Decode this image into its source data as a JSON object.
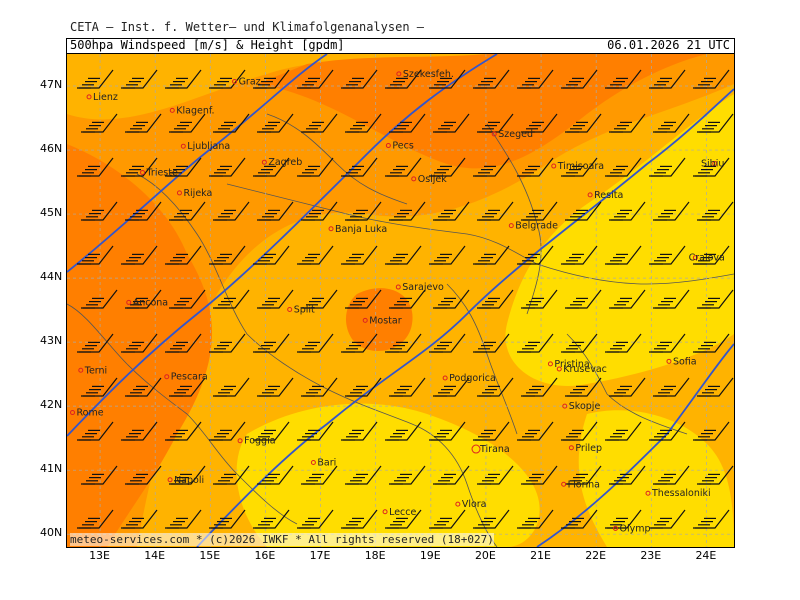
{
  "header": {
    "institute": "CETA — Inst. f. Wetter— und Klimafolgenanalysen —"
  },
  "title_bar": {
    "product": "500hpa Windspeed [m/s] & Height [gpdm]",
    "valid_time": "06.01.2026 21 UTC"
  },
  "credit": "meteo-services.com * (c)2026 IWKF * All rights reserved (18+027)",
  "axes": {
    "lat_labels": [
      "47N",
      "46N",
      "45N",
      "44N",
      "43N",
      "42N",
      "41N",
      "40N"
    ],
    "lon_labels": [
      "13E",
      "14E",
      "15E",
      "16E",
      "17E",
      "18E",
      "19E",
      "20E",
      "21E",
      "22E",
      "23E",
      "24E"
    ],
    "lon_range": [
      12.4,
      24.5
    ],
    "lat_range": [
      39.8,
      47.5
    ]
  },
  "colors": {
    "light_orange": "#ffb300",
    "orange": "#ff9900",
    "dark_orange": "#ff7f00",
    "yellow": "#ffdd00",
    "contour": "#3355cc",
    "city": "#dd2222",
    "grid": "#aaaaaa"
  },
  "cities": [
    {
      "name": "Lienz",
      "lon": 12.8,
      "lat": 46.83
    },
    {
      "name": "Graz",
      "lon": 15.44,
      "lat": 47.07
    },
    {
      "name": "Szekesfeh.",
      "lon": 18.42,
      "lat": 47.19
    },
    {
      "name": "Klagenf.",
      "lon": 14.31,
      "lat": 46.62
    },
    {
      "name": "Ljubljana",
      "lon": 14.51,
      "lat": 46.06
    },
    {
      "name": "Pecs",
      "lon": 18.23,
      "lat": 46.07
    },
    {
      "name": "Szeged",
      "lon": 20.15,
      "lat": 46.25
    },
    {
      "name": "Trieste",
      "lon": 13.77,
      "lat": 45.65
    },
    {
      "name": "Zagreb",
      "lon": 15.98,
      "lat": 45.81
    },
    {
      "name": "Timisoara",
      "lon": 21.23,
      "lat": 45.75
    },
    {
      "name": "Sibiu",
      "lon": 24.15,
      "lat": 45.79
    },
    {
      "name": "Rijeka",
      "lon": 14.44,
      "lat": 45.33
    },
    {
      "name": "Osijek",
      "lon": 18.69,
      "lat": 45.55
    },
    {
      "name": "Resita",
      "lon": 21.89,
      "lat": 45.3
    },
    {
      "name": "Banja Luka",
      "lon": 17.19,
      "lat": 44.77
    },
    {
      "name": "Belgrade",
      "lon": 20.46,
      "lat": 44.82
    },
    {
      "name": "Craiova",
      "lon": 23.8,
      "lat": 44.32
    },
    {
      "name": "Ancona",
      "lon": 13.52,
      "lat": 43.62
    },
    {
      "name": "Sarajevo",
      "lon": 18.41,
      "lat": 43.86
    },
    {
      "name": "Split",
      "lon": 16.44,
      "lat": 43.51
    },
    {
      "name": "Mostar",
      "lon": 17.81,
      "lat": 43.34
    },
    {
      "name": "Terni",
      "lon": 12.65,
      "lat": 42.56
    },
    {
      "name": "Pristina",
      "lon": 21.17,
      "lat": 42.66
    },
    {
      "name": "Sofia",
      "lon": 23.32,
      "lat": 42.7
    },
    {
      "name": "Krusevac",
      "lon": 21.33,
      "lat": 42.58
    },
    {
      "name": "Pescara",
      "lon": 14.21,
      "lat": 42.46
    },
    {
      "name": "Podgorica",
      "lon": 19.26,
      "lat": 42.44
    },
    {
      "name": "Rome",
      "lon": 12.5,
      "lat": 41.9
    },
    {
      "name": "Skopje",
      "lon": 21.43,
      "lat": 42.0
    },
    {
      "name": "Foggia",
      "lon": 15.54,
      "lat": 41.46
    },
    {
      "name": "Tirana",
      "lon": 19.82,
      "lat": 41.33
    },
    {
      "name": "Prilep",
      "lon": 21.55,
      "lat": 41.35
    },
    {
      "name": "Bari",
      "lon": 16.87,
      "lat": 41.12
    },
    {
      "name": "Napoli",
      "lon": 14.27,
      "lat": 40.85
    },
    {
      "name": "Florina",
      "lon": 21.41,
      "lat": 40.78
    },
    {
      "name": "Thessaloniki",
      "lon": 22.94,
      "lat": 40.64
    },
    {
      "name": "Lecce",
      "lon": 18.17,
      "lat": 40.35
    },
    {
      "name": "Vlora",
      "lon": 19.49,
      "lat": 40.47
    },
    {
      "name": "Olymp",
      "lon": 22.35,
      "lat": 40.09
    }
  ]
}
